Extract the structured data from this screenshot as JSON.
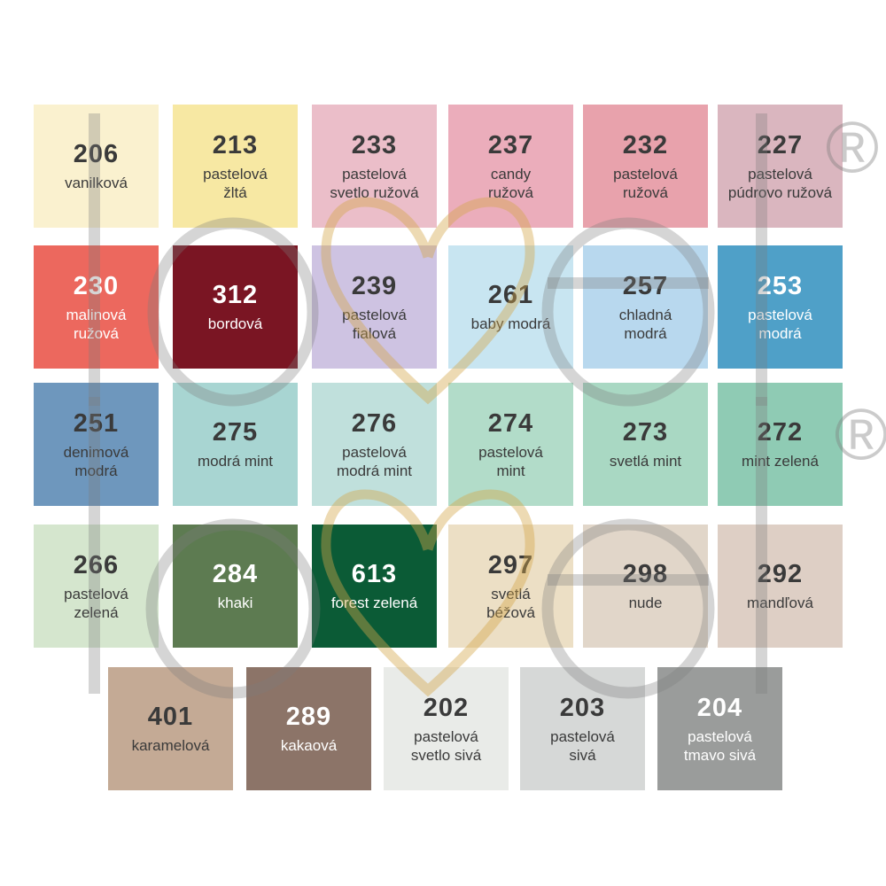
{
  "page": {
    "background": "#ffffff"
  },
  "watermark": {
    "brand": "lovel",
    "registered_symbol": "®",
    "grey_color": "#7d7d7d",
    "gold_color": "#d5a74a"
  },
  "text_colors": {
    "dark": "#3a3a3a",
    "light": "#ffffff"
  },
  "swatches": [
    {
      "code": "206",
      "name": "vanilková",
      "color": "#FAF1CF",
      "text": "dark",
      "row": 1,
      "col": 1
    },
    {
      "code": "213",
      "name": "pastelová\nžltá",
      "color": "#F7E8A3",
      "text": "dark",
      "row": 1,
      "col": 2
    },
    {
      "code": "233",
      "name": "pastelová\nsvetlo ružová",
      "color": "#EBBEC9",
      "text": "dark",
      "row": 1,
      "col": 3
    },
    {
      "code": "237",
      "name": "candy\nružová",
      "color": "#EBADBB",
      "text": "dark",
      "row": 1,
      "col": 4
    },
    {
      "code": "232",
      "name": "pastelová\nružová",
      "color": "#E8A2AC",
      "text": "dark",
      "row": 1,
      "col": 5
    },
    {
      "code": "227",
      "name": "pastelová\npúdrovo ružová",
      "color": "#DAB6BF",
      "text": "dark",
      "row": 1,
      "col": 6
    },
    {
      "code": "230",
      "name": "malinová\nružová",
      "color": "#EC685E",
      "text": "light",
      "row": 2,
      "col": 1
    },
    {
      "code": "312",
      "name": "bordová",
      "color": "#7A1523",
      "text": "light",
      "row": 2,
      "col": 2
    },
    {
      "code": "239",
      "name": "pastelová\nfialová",
      "color": "#CEC3E2",
      "text": "dark",
      "row": 2,
      "col": 3
    },
    {
      "code": "261",
      "name": "baby modrá",
      "color": "#C8E5F1",
      "text": "dark",
      "row": 2,
      "col": 4
    },
    {
      "code": "257",
      "name": "chladná\nmodrá",
      "color": "#B8D8EE",
      "text": "dark",
      "row": 2,
      "col": 5
    },
    {
      "code": "253",
      "name": "pastelová\nmodrá",
      "color": "#4FA0C8",
      "text": "light",
      "row": 2,
      "col": 6
    },
    {
      "code": "251",
      "name": "denimová\nmodrá",
      "color": "#6E97BD",
      "text": "dark",
      "row": 3,
      "col": 1
    },
    {
      "code": "275",
      "name": "modrá mint",
      "color": "#A8D5D2",
      "text": "dark",
      "row": 3,
      "col": 2
    },
    {
      "code": "276",
      "name": "pastelová\nmodrá mint",
      "color": "#C0E0DC",
      "text": "dark",
      "row": 3,
      "col": 3
    },
    {
      "code": "274",
      "name": "pastelová\nmint",
      "color": "#B2DCC9",
      "text": "dark",
      "row": 3,
      "col": 4
    },
    {
      "code": "273",
      "name": "svetlá mint",
      "color": "#A9D8C3",
      "text": "dark",
      "row": 3,
      "col": 5
    },
    {
      "code": "272",
      "name": "mint zelená",
      "color": "#8FCBB4",
      "text": "dark",
      "row": 3,
      "col": 6
    },
    {
      "code": "266",
      "name": "pastelová\nzelená",
      "color": "#D5E6CE",
      "text": "dark",
      "row": 4,
      "col": 1
    },
    {
      "code": "284",
      "name": "khaki",
      "color": "#5D7B51",
      "text": "light",
      "row": 4,
      "col": 2
    },
    {
      "code": "613",
      "name": "forest zelená",
      "color": "#0B5B36",
      "text": "light",
      "row": 4,
      "col": 3
    },
    {
      "code": "297",
      "name": "svetlá\nbéžová",
      "color": "#ECDFC5",
      "text": "dark",
      "row": 4,
      "col": 4
    },
    {
      "code": "298",
      "name": "nude",
      "color": "#E1D6C9",
      "text": "dark",
      "row": 4,
      "col": 5
    },
    {
      "code": "292",
      "name": "mandľová",
      "color": "#DECFC5",
      "text": "dark",
      "row": 4,
      "col": 6
    },
    {
      "code": "401",
      "name": "karamelová",
      "color": "#C4AA95",
      "text": "dark",
      "row": 5,
      "col": 1
    },
    {
      "code": "289",
      "name": "kakaová",
      "color": "#8C7468",
      "text": "light",
      "row": 5,
      "col": 2
    },
    {
      "code": "202",
      "name": "pastelová\nsvetlo sivá",
      "color": "#E9EBE8",
      "text": "dark",
      "row": 5,
      "col": 3
    },
    {
      "code": "203",
      "name": "pastelová\nsivá",
      "color": "#D6D8D7",
      "text": "dark",
      "row": 5,
      "col": 4
    },
    {
      "code": "204",
      "name": "pastelová\ntmavo sivá",
      "color": "#9A9C9B",
      "text": "light",
      "row": 5,
      "col": 5
    }
  ]
}
